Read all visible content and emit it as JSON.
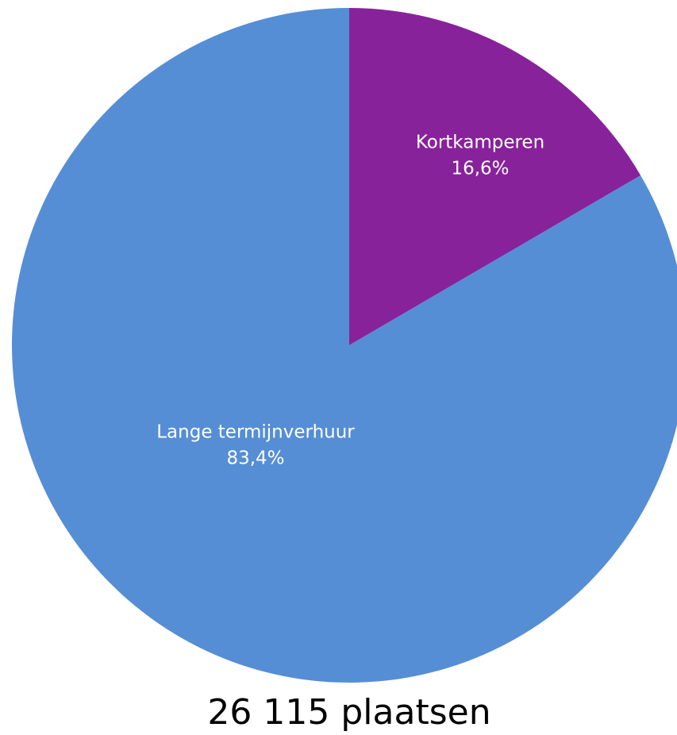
{
  "chart_data": {
    "type": "pie",
    "title": "26 115 plaatsen",
    "categories": [
      "Kortkamperen",
      "Lange termijnverhuur"
    ],
    "values": [
      16.6,
      83.4
    ],
    "value_labels": [
      "16,6%",
      "83,4%"
    ],
    "colors": [
      "#88229b",
      "#558ed5"
    ]
  }
}
